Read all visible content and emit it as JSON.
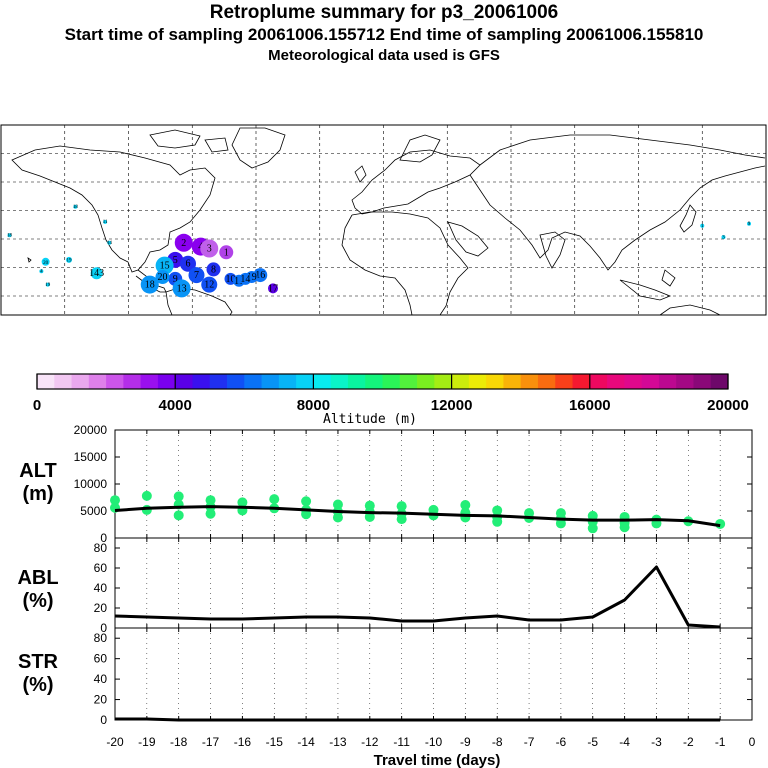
{
  "header": {
    "title": "Retroplume summary for p3_20061006",
    "sampling_line": "Start time of sampling 20061006.155712     End time of sampling 20061006.155810",
    "met_line": "Meteorological data used is GFS"
  },
  "colors": {
    "colorbar": [
      "#f8e4f8",
      "#f2c8f2",
      "#eaa8ee",
      "#de80ea",
      "#cc55ea",
      "#b42ee8",
      "#9a10ee",
      "#7a00ee",
      "#5a00e6",
      "#3a10ee",
      "#2030f0",
      "#1050f4",
      "#0a72f6",
      "#0894f6",
      "#08b4f6",
      "#08d2f6",
      "#08ecf0",
      "#0af4c8",
      "#0af4a0",
      "#14f47c",
      "#2af458",
      "#52f23c",
      "#7aee20",
      "#a4ec14",
      "#ccec0c",
      "#ecec06",
      "#f8d806",
      "#f8b408",
      "#f8900c",
      "#f86c10",
      "#f8401a",
      "#f41830",
      "#ee0860",
      "#e8087c",
      "#e0088c",
      "#d40896",
      "#bc0890",
      "#a40884",
      "#8a0878",
      "#6e086a"
    ],
    "alt_points": "#22ee77",
    "line": "#000000"
  },
  "map_markers": [
    {
      "label": "2",
      "lon": -94,
      "lat": 28,
      "color": "#8a00ee",
      "size": 9
    },
    {
      "label": "4",
      "lon": -86,
      "lat": 26,
      "color": "#8a00ee",
      "size": 9
    },
    {
      "label": "3",
      "lon": -82,
      "lat": 25,
      "color": "#c060ea",
      "size": 9
    },
    {
      "label": "1",
      "lon": -74,
      "lat": 23,
      "color": "#b042e8",
      "size": 7
    },
    {
      "label": "5",
      "lon": -98,
      "lat": 19,
      "color": "#3a10ee",
      "size": 8
    },
    {
      "label": "6",
      "lon": -92,
      "lat": 17,
      "color": "#2030f0",
      "size": 8
    },
    {
      "label": "8",
      "lon": -80,
      "lat": 14,
      "color": "#2030f0",
      "size": 7
    },
    {
      "label": "7",
      "lon": -88,
      "lat": 11,
      "color": "#1050f4",
      "size": 8
    },
    {
      "label": "9",
      "lon": -98,
      "lat": 9,
      "color": "#1050f4",
      "size": 7
    },
    {
      "label": "10",
      "lon": -72,
      "lat": 9,
      "color": "#1050f4",
      "size": 6
    },
    {
      "label": "11",
      "lon": -68,
      "lat": 8,
      "color": "#0a72f6",
      "size": 6
    },
    {
      "label": "12",
      "lon": -82,
      "lat": 6,
      "color": "#1050f4",
      "size": 8
    },
    {
      "label": "13",
      "lon": -95,
      "lat": 4,
      "color": "#0894f6",
      "size": 9
    },
    {
      "label": "15",
      "lon": -103,
      "lat": 16,
      "color": "#08b4f6",
      "size": 9
    },
    {
      "label": "18",
      "lon": -110,
      "lat": 6,
      "color": "#0894f6",
      "size": 9
    },
    {
      "label": "20",
      "lon": -104,
      "lat": 10,
      "color": "#0894f6",
      "size": 7
    },
    {
      "label": "16",
      "lon": -58,
      "lat": 11,
      "color": "#0a72f6",
      "size": 7
    },
    {
      "label": "19",
      "lon": -62,
      "lat": 10,
      "color": "#0a72f6",
      "size": 6
    },
    {
      "label": "14",
      "lon": -65,
      "lat": 9,
      "color": "#0a72f6",
      "size": 6
    },
    {
      "label": "17",
      "lon": -52,
      "lat": 4,
      "color": "#5a00e6",
      "size": 5
    },
    {
      "label": "143",
      "lon": -135,
      "lat": 12,
      "color": "#08d2f6",
      "size": 6
    },
    {
      "label": "20",
      "lon": -159,
      "lat": 18,
      "color": "#08d2f6",
      "size": 4
    },
    {
      "label": "19",
      "lon": -148,
      "lat": 19,
      "color": "#08d2f6",
      "size": 3
    },
    {
      "label": "18",
      "lon": -176,
      "lat": 32,
      "color": "#08d2f6",
      "size": 2
    },
    {
      "label": "18",
      "lon": -145,
      "lat": 47,
      "color": "#08d2f6",
      "size": 2
    },
    {
      "label": "14",
      "lon": -129,
      "lat": 28,
      "color": "#08d2f6",
      "size": 2
    },
    {
      "label": "19",
      "lon": -158,
      "lat": 6,
      "color": "#08d2f6",
      "size": 2
    },
    {
      "label": "11",
      "lon": -131,
      "lat": 39,
      "color": "#08d2f6",
      "size": 2
    },
    {
      "label": "4",
      "lon": -161,
      "lat": 13,
      "color": "#08d2f6",
      "size": 2
    },
    {
      "label": "1",
      "lon": 150,
      "lat": 37,
      "color": "#08d2f6",
      "size": 2
    },
    {
      "label": "9",
      "lon": 172,
      "lat": 38,
      "color": "#08d2f6",
      "size": 2
    },
    {
      "label": "3",
      "lon": 160,
      "lat": 31,
      "color": "#08d2f6",
      "size": 2
    }
  ],
  "colorbar_ticks": [
    "0",
    "4000",
    "8000",
    "12000",
    "16000",
    "20000"
  ],
  "colorbar_label": "Altitude  (m)",
  "panels": {
    "alt": {
      "title1": "ALT",
      "title2": "(m)",
      "ticks": [
        "20000",
        "15000",
        "10000",
        "5000",
        "0"
      ]
    },
    "abl": {
      "title1": "ABL",
      "title2": "(%)",
      "ticks": [
        "80",
        "60",
        "40",
        "20",
        "0"
      ]
    },
    "str": {
      "title1": "STR",
      "title2": "(%)",
      "ticks": [
        "80",
        "60",
        "40",
        "20",
        "0"
      ]
    }
  },
  "chart_data": [
    {
      "type": "line",
      "title": "ALT (m)",
      "xlabel": "Travel time (days)",
      "ylabel": "ALT (m)",
      "xlim": [
        -20,
        0
      ],
      "ylim": [
        0,
        20000
      ],
      "x": [
        -20,
        -19,
        -18,
        -17,
        -16,
        -15,
        -14,
        -13,
        -12,
        -11,
        -10,
        -9,
        -8,
        -7,
        -6,
        -5,
        -4,
        -3,
        -2,
        -1
      ],
      "series": [
        {
          "name": "mean altitude",
          "values": [
            5100,
            5500,
            5700,
            5800,
            5700,
            5500,
            5200,
            4900,
            4700,
            4600,
            4400,
            4200,
            4100,
            3800,
            3500,
            3300,
            3300,
            3400,
            3200,
            2300
          ]
        }
      ],
      "scatter_points": [
        [
          -20,
          7000
        ],
        [
          -20,
          5600
        ],
        [
          -19,
          7800
        ],
        [
          -19,
          5200
        ],
        [
          -18,
          7700
        ],
        [
          -18,
          6200
        ],
        [
          -18,
          4200
        ],
        [
          -17,
          7000
        ],
        [
          -17,
          5800
        ],
        [
          -17,
          4500
        ],
        [
          -16,
          6600
        ],
        [
          -16,
          5100
        ],
        [
          -15,
          7200
        ],
        [
          -15,
          5500
        ],
        [
          -14,
          6800
        ],
        [
          -14,
          5200
        ],
        [
          -14,
          4400
        ],
        [
          -13,
          6200
        ],
        [
          -13,
          4900
        ],
        [
          -13,
          3800
        ],
        [
          -12,
          6000
        ],
        [
          -12,
          4800
        ],
        [
          -12,
          3900
        ],
        [
          -11,
          5900
        ],
        [
          -11,
          4500
        ],
        [
          -11,
          3500
        ],
        [
          -10,
          5200
        ],
        [
          -10,
          4200
        ],
        [
          -9,
          6100
        ],
        [
          -9,
          4700
        ],
        [
          -9,
          3800
        ],
        [
          -8,
          5100
        ],
        [
          -8,
          3900
        ],
        [
          -8,
          3000
        ],
        [
          -7,
          4600
        ],
        [
          -7,
          3700
        ],
        [
          -6,
          4600
        ],
        [
          -6,
          3600
        ],
        [
          -6,
          2700
        ],
        [
          -5,
          4100
        ],
        [
          -5,
          3000
        ],
        [
          -5,
          1800
        ],
        [
          -4,
          3900
        ],
        [
          -4,
          2800
        ],
        [
          -4,
          2000
        ],
        [
          -3,
          3400
        ],
        [
          -3,
          2700
        ],
        [
          -2,
          3100
        ],
        [
          -1,
          2600
        ]
      ]
    },
    {
      "type": "line",
      "title": "ABL (%)",
      "xlabel": "Travel time (days)",
      "ylabel": "ABL (%)",
      "xlim": [
        -20,
        0
      ],
      "ylim": [
        0,
        90
      ],
      "x": [
        -20,
        -19,
        -18,
        -17,
        -16,
        -15,
        -14,
        -13,
        -12,
        -11,
        -10,
        -9,
        -8,
        -7,
        -6,
        -5,
        -4,
        -3,
        -2,
        -1
      ],
      "series": [
        {
          "name": "ABL",
          "values": [
            12,
            11,
            10,
            9,
            9,
            10,
            11,
            11,
            10,
            7,
            7,
            10,
            12,
            8,
            8,
            11,
            28,
            61,
            3,
            1
          ]
        }
      ]
    },
    {
      "type": "line",
      "title": "STR (%)",
      "xlabel": "Travel time (days)",
      "ylabel": "STR (%)",
      "xlim": [
        -20,
        0
      ],
      "ylim": [
        0,
        90
      ],
      "x": [
        -20,
        -19,
        -18,
        -17,
        -16,
        -15,
        -14,
        -13,
        -12,
        -11,
        -10,
        -9,
        -8,
        -7,
        -6,
        -5,
        -4,
        -3,
        -2,
        -1
      ],
      "series": [
        {
          "name": "STR",
          "values": [
            1,
            1,
            0,
            0,
            0,
            0,
            0,
            0,
            0,
            0,
            0,
            0,
            0,
            0,
            0,
            0,
            0,
            0,
            0,
            0
          ]
        }
      ]
    }
  ],
  "xaxis": {
    "ticks": [
      "-20",
      "-19",
      "-18",
      "-17",
      "-16",
      "-15",
      "-14",
      "-13",
      "-12",
      "-11",
      "-10",
      "-9",
      "-8",
      "-7",
      "-6",
      "-5",
      "-4",
      "-3",
      "-2",
      "-1",
      "0"
    ],
    "label": "Travel time (days)"
  }
}
